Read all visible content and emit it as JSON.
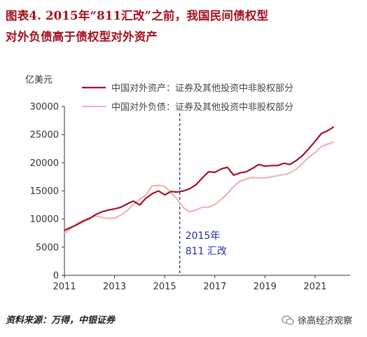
{
  "title_lines": [
    "图表4.  2015年“811汇改”之前，我国民间债权型",
    "对外负债高于债权型对外资产"
  ],
  "source": "资料来源：万得，中银证券",
  "watermark": "徐高经济观察",
  "chart_data": {
    "type": "line",
    "ylabel": "亿美元",
    "ylim": [
      0,
      30000
    ],
    "yticks": [
      0,
      5000,
      10000,
      15000,
      20000,
      25000,
      30000
    ],
    "xlim": [
      2011,
      2022.4
    ],
    "xticks": [
      2011,
      2013,
      2015,
      2017,
      2019,
      2021
    ],
    "grid": false,
    "legend_position": "top-right",
    "annotation": {
      "x": 2015.6,
      "lines": [
        "2015年",
        "811 汇改"
      ]
    },
    "series": [
      {
        "name": "中国对外资产：证券及其他投资中非股权部分",
        "color": "#a50f2d",
        "x": [
          2011.0,
          2011.25,
          2011.5,
          2011.75,
          2012.0,
          2012.25,
          2012.5,
          2012.75,
          2013.0,
          2013.25,
          2013.5,
          2013.75,
          2014.0,
          2014.25,
          2014.5,
          2014.75,
          2015.0,
          2015.25,
          2015.5,
          2015.75,
          2016.0,
          2016.25,
          2016.5,
          2016.75,
          2017.0,
          2017.25,
          2017.5,
          2017.75,
          2018.0,
          2018.25,
          2018.5,
          2018.75,
          2019.0,
          2019.25,
          2019.5,
          2019.75,
          2020.0,
          2020.25,
          2020.5,
          2020.75,
          2021.0,
          2021.25,
          2021.5,
          2021.75
        ],
        "values": [
          8000,
          8500,
          9000,
          9600,
          10100,
          10800,
          11300,
          11600,
          11800,
          12100,
          12700,
          13200,
          12500,
          13700,
          14500,
          15000,
          14300,
          14900,
          14800,
          15000,
          15400,
          16100,
          17300,
          18400,
          18300,
          18900,
          19200,
          17800,
          18200,
          18400,
          19000,
          19700,
          19400,
          19500,
          19500,
          19900,
          19700,
          20400,
          21300,
          22500,
          23800,
          25200,
          25700,
          26400
        ]
      },
      {
        "name": "中国对外负债：证券及其他投资中非股权部分",
        "color": "#eeb4b4",
        "x": [
          2011.0,
          2011.25,
          2011.5,
          2011.75,
          2012.0,
          2012.25,
          2012.5,
          2012.75,
          2013.0,
          2013.25,
          2013.5,
          2013.75,
          2014.0,
          2014.25,
          2014.5,
          2014.75,
          2015.0,
          2015.25,
          2015.5,
          2015.75,
          2016.0,
          2016.25,
          2016.5,
          2016.75,
          2017.0,
          2017.25,
          2017.5,
          2017.75,
          2018.0,
          2018.25,
          2018.5,
          2018.75,
          2019.0,
          2019.25,
          2019.5,
          2019.75,
          2020.0,
          2020.25,
          2020.5,
          2020.75,
          2021.0,
          2021.25,
          2021.5,
          2021.75
        ],
        "values": [
          7500,
          8300,
          9200,
          9800,
          10200,
          10500,
          10300,
          10100,
          10200,
          10700,
          11500,
          12600,
          13500,
          14300,
          15900,
          16000,
          15800,
          14700,
          13500,
          12000,
          11300,
          11600,
          12100,
          12100,
          12600,
          13500,
          14500,
          15800,
          16700,
          17100,
          17400,
          17300,
          17300,
          17500,
          17700,
          17900,
          18200,
          18900,
          19900,
          21000,
          21800,
          22900,
          23300,
          23700
        ]
      }
    ]
  }
}
